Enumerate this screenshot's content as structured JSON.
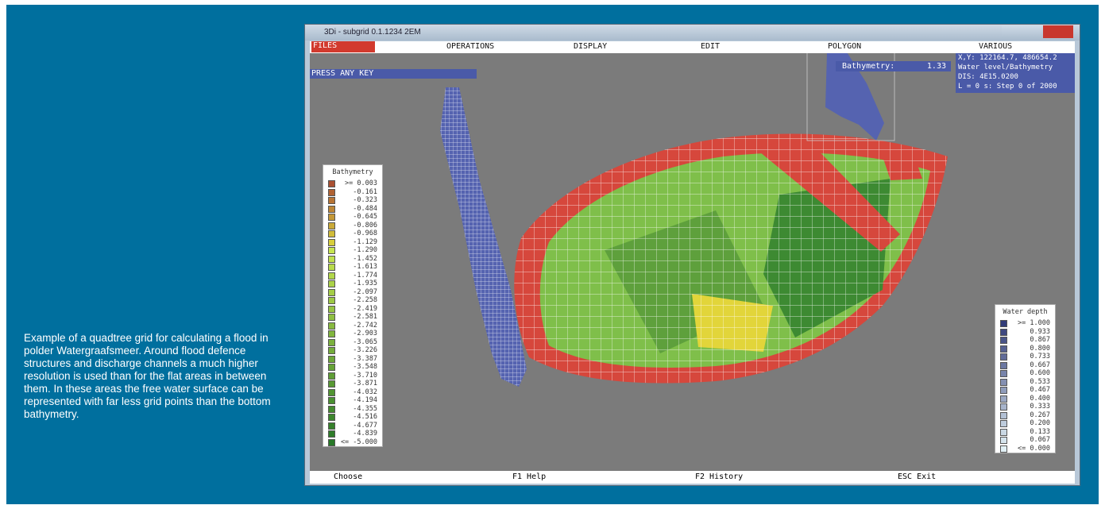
{
  "caption": "Example of a quadtree grid for calculating a flood in polder Watergraafsmeer. Around flood defence structures and discharge channels a much higher resolution is used than for the flat areas in between them. In these areas the free water surface can be represented with far less grid points than the bottom bathymetry.",
  "window": {
    "title": "3Di - subgrid 0.1.1234 2EM",
    "menu": [
      "FILES",
      "OPERATIONS",
      "DISPLAY",
      "EDIT",
      "POLYGON",
      "VARIOUS"
    ],
    "prompt": "PRESS ANY KEY",
    "bathymetry_label": "Bathymetry:",
    "bathymetry_value": "1.33",
    "info": [
      "X,Y: 122164.7, 486654.2",
      "Water level/Bathymetry",
      "DIS: 4E15.0200",
      "L = 0 s: Step 0 of 2000"
    ],
    "legend_left": {
      "title": "Bathymetry",
      "items": [
        ">= 0.003",
        "-0.161",
        "-0.323",
        "-0.484",
        "-0.645",
        "-0.806",
        "-0.968",
        "-1.129",
        "-1.290",
        "-1.452",
        "-1.613",
        "-1.774",
        "-1.935",
        "-2.097",
        "-2.258",
        "-2.419",
        "-2.581",
        "-2.742",
        "-2.903",
        "-3.065",
        "-3.226",
        "-3.387",
        "-3.548",
        "-3.710",
        "-3.871",
        "-4.032",
        "-4.194",
        "-4.355",
        "-4.516",
        "-4.677",
        "-4.839",
        "<= -5.000"
      ]
    },
    "legend_right": {
      "title": "Water depth",
      "items": [
        ">= 1.000",
        "0.933",
        "0.867",
        "0.800",
        "0.733",
        "0.667",
        "0.600",
        "0.533",
        "0.467",
        "0.400",
        "0.333",
        "0.267",
        "0.200",
        "0.133",
        "0.067",
        "<= 0.000"
      ]
    },
    "statusbar": [
      "Choose",
      "F1 Help",
      "F2 History",
      "ESC Exit"
    ]
  }
}
